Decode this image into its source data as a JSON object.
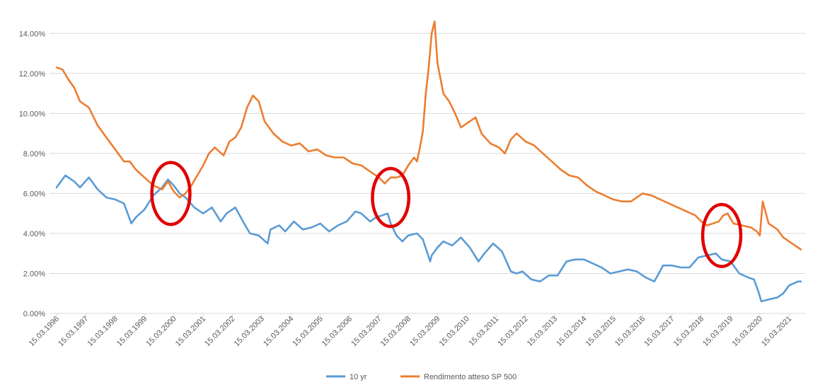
{
  "chart_data": {
    "type": "line",
    "y_tick_labels": [
      "0.00%",
      "2.00%",
      "4.00%",
      "6.00%",
      "8.00%",
      "10.00%",
      "12.00%",
      "14.00%"
    ],
    "ylim": [
      0,
      15
    ],
    "x_tick_labels": [
      "15.03.1996",
      "15.03.1997",
      "15.03.1998",
      "15.03.1999",
      "15.03.2000",
      "15.03.2001",
      "15.03.2002",
      "15.03.2003",
      "15.03.2004",
      "15.03.2005",
      "15.03.2006",
      "15.03.2007",
      "15.03.2008",
      "15.03.2009",
      "15.03.2010",
      "15.03.2011",
      "15.03.2012",
      "15.03.2013",
      "15.03.2014",
      "15.03.2015",
      "15.03.2016",
      "15.03.2017",
      "15.03.2018",
      "15.03.2019",
      "15.03.2020",
      "15.03.2021"
    ],
    "xlim": [
      1996.2,
      2021.7
    ],
    "grid": "horizontal",
    "legend_position": "bottom",
    "series": [
      {
        "name": "10 yr",
        "color": "#5b9bd5",
        "x": [
          1996.2,
          1996.5,
          1996.8,
          1997.0,
          1997.3,
          1997.6,
          1997.9,
          1998.2,
          1998.5,
          1998.75,
          1998.9,
          1999.2,
          1999.5,
          1999.8,
          2000.0,
          2000.2,
          2000.4,
          2000.6,
          2000.9,
          2001.2,
          2001.5,
          2001.8,
          2002.0,
          2002.3,
          2002.6,
          2002.8,
          2003.1,
          2003.4,
          2003.5,
          2003.8,
          2004.0,
          2004.3,
          2004.6,
          2004.9,
          2005.2,
          2005.5,
          2005.8,
          2006.1,
          2006.4,
          2006.6,
          2006.9,
          2007.1,
          2007.3,
          2007.5,
          2007.6,
          2007.8,
          2008.0,
          2008.2,
          2008.5,
          2008.7,
          2008.95,
          2009.0,
          2009.2,
          2009.4,
          2009.7,
          2010.0,
          2010.3,
          2010.6,
          2010.8,
          2011.1,
          2011.4,
          2011.7,
          2011.9,
          2012.1,
          2012.4,
          2012.7,
          2013.0,
          2013.3,
          2013.6,
          2013.9,
          2014.2,
          2014.5,
          2014.8,
          2015.1,
          2015.4,
          2015.7,
          2016.0,
          2016.3,
          2016.6,
          2016.9,
          2017.2,
          2017.5,
          2017.8,
          2018.1,
          2018.4,
          2018.7,
          2018.9,
          2019.2,
          2019.5,
          2019.8,
          2020.0,
          2020.15,
          2020.25,
          2020.5,
          2020.8,
          2021.0,
          2021.2,
          2021.5,
          2021.6
        ],
        "values": [
          6.3,
          6.9,
          6.6,
          6.3,
          6.8,
          6.2,
          5.8,
          5.7,
          5.5,
          4.5,
          4.8,
          5.2,
          5.9,
          6.3,
          6.7,
          6.4,
          6.0,
          5.8,
          5.3,
          5.0,
          5.3,
          4.6,
          5.0,
          5.3,
          4.5,
          4.0,
          3.9,
          3.5,
          4.2,
          4.4,
          4.1,
          4.6,
          4.2,
          4.3,
          4.5,
          4.1,
          4.4,
          4.6,
          5.1,
          5.0,
          4.6,
          4.8,
          4.9,
          5.0,
          4.5,
          3.9,
          3.6,
          3.9,
          4.0,
          3.7,
          2.6,
          2.9,
          3.3,
          3.6,
          3.4,
          3.8,
          3.3,
          2.6,
          3.0,
          3.5,
          3.1,
          2.1,
          2.0,
          2.1,
          1.7,
          1.6,
          1.9,
          1.9,
          2.6,
          2.7,
          2.7,
          2.5,
          2.3,
          2.0,
          2.1,
          2.2,
          2.1,
          1.8,
          1.6,
          2.4,
          2.4,
          2.3,
          2.3,
          2.8,
          2.9,
          3.0,
          2.7,
          2.6,
          2.0,
          1.8,
          1.7,
          1.1,
          0.6,
          0.7,
          0.8,
          1.0,
          1.4,
          1.6,
          1.6
        ]
      },
      {
        "name": "Rendimento atteso SP 500",
        "color": "#ed7d31",
        "x": [
          1996.2,
          1996.4,
          1996.6,
          1996.8,
          1997.0,
          1997.3,
          1997.6,
          1997.9,
          1998.2,
          1998.5,
          1998.7,
          1998.9,
          1999.2,
          1999.5,
          1999.8,
          2000.0,
          2000.2,
          2000.4,
          2000.6,
          2000.8,
          2001.0,
          2001.2,
          2001.4,
          2001.6,
          2001.9,
          2002.1,
          2002.3,
          2002.5,
          2002.7,
          2002.9,
          2003.1,
          2003.3,
          2003.6,
          2003.9,
          2004.2,
          2004.5,
          2004.8,
          2005.1,
          2005.4,
          2005.7,
          2006.0,
          2006.3,
          2006.6,
          2006.9,
          2007.2,
          2007.4,
          2007.6,
          2007.8,
          2008.0,
          2008.2,
          2008.4,
          2008.5,
          2008.6,
          2008.7,
          2008.8,
          2008.9,
          2009.0,
          2009.1,
          2009.2,
          2009.4,
          2009.6,
          2009.8,
          2010.0,
          2010.3,
          2010.5,
          2010.7,
          2011.0,
          2011.3,
          2011.5,
          2011.7,
          2011.9,
          2012.2,
          2012.5,
          2012.8,
          2013.1,
          2013.4,
          2013.7,
          2014.0,
          2014.3,
          2014.6,
          2014.9,
          2015.2,
          2015.5,
          2015.8,
          2016.0,
          2016.2,
          2016.5,
          2016.8,
          2017.1,
          2017.4,
          2017.7,
          2018.0,
          2018.2,
          2018.4,
          2018.6,
          2018.8,
          2018.95,
          2019.1,
          2019.3,
          2019.6,
          2019.9,
          2020.1,
          2020.2,
          2020.3,
          2020.5,
          2020.8,
          2021.0,
          2021.3,
          2021.6
        ],
        "values": [
          12.3,
          12.2,
          11.7,
          11.3,
          10.6,
          10.3,
          9.4,
          8.8,
          8.2,
          7.6,
          7.6,
          7.2,
          6.8,
          6.4,
          6.2,
          6.6,
          6.1,
          5.8,
          6.0,
          6.4,
          6.9,
          7.4,
          8.0,
          8.3,
          7.9,
          8.6,
          8.8,
          9.3,
          10.3,
          10.9,
          10.6,
          9.6,
          9.0,
          8.6,
          8.4,
          8.5,
          8.1,
          8.2,
          7.9,
          7.8,
          7.8,
          7.5,
          7.4,
          7.1,
          6.8,
          6.5,
          6.8,
          6.8,
          6.9,
          7.4,
          7.8,
          7.6,
          8.3,
          9.1,
          11.0,
          12.3,
          14.0,
          14.6,
          12.5,
          11.0,
          10.6,
          10.0,
          9.3,
          9.6,
          9.8,
          9.0,
          8.5,
          8.3,
          8.0,
          8.7,
          9.0,
          8.6,
          8.4,
          8.0,
          7.6,
          7.2,
          6.9,
          6.8,
          6.4,
          6.1,
          5.9,
          5.7,
          5.6,
          5.6,
          5.8,
          6.0,
          5.9,
          5.7,
          5.5,
          5.3,
          5.1,
          4.9,
          4.6,
          4.4,
          4.5,
          4.6,
          4.9,
          5.0,
          4.5,
          4.4,
          4.3,
          4.1,
          3.9,
          5.6,
          4.5,
          4.2,
          3.8,
          3.5,
          3.2
        ]
      }
    ],
    "annotations": [
      {
        "type": "ellipse",
        "color": "#e00000",
        "cx": 2000.1,
        "cy": 6.0,
        "rx": 0.65,
        "ry": 1.55
      },
      {
        "type": "ellipse",
        "color": "#e00000",
        "cx": 2007.6,
        "cy": 5.8,
        "rx": 0.62,
        "ry": 1.45
      },
      {
        "type": "ellipse",
        "color": "#e00000",
        "cx": 2018.9,
        "cy": 3.9,
        "rx": 0.65,
        "ry": 1.55
      }
    ]
  }
}
